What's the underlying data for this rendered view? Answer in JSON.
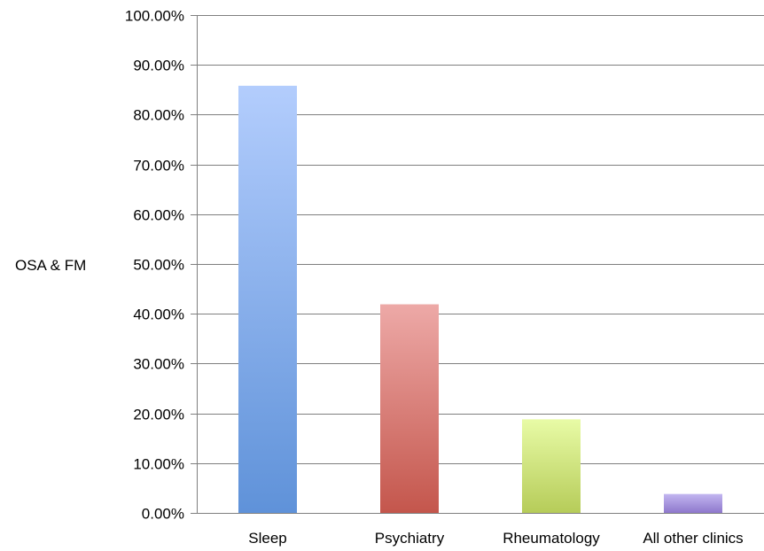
{
  "chart_data": {
    "type": "bar",
    "title": "",
    "xlabel": "",
    "ylabel": "OSA & FM",
    "ylim": [
      0,
      100
    ],
    "y_tick_step": 10,
    "y_tick_labels": [
      "0.00%",
      "10.00%",
      "20.00%",
      "30.00%",
      "40.00%",
      "50.00%",
      "60.00%",
      "70.00%",
      "80.00%",
      "90.00%",
      "100.00%"
    ],
    "grid": true,
    "legend": "none",
    "categories": [
      "Sleep",
      "Psychiatry",
      "Rheumatology",
      "All other clinics"
    ],
    "values": [
      85.8,
      41.9,
      18.8,
      3.8
    ],
    "bar_colors": [
      {
        "top": "#b3cdfd",
        "bottom": "#5f92d9"
      },
      {
        "top": "#eda9a7",
        "bottom": "#c4564c"
      },
      {
        "top": "#e8fba6",
        "bottom": "#b6cc59"
      },
      {
        "top": "#c2b5f0",
        "bottom": "#8e78cc"
      }
    ],
    "grid_color": "#7f7f7f"
  }
}
